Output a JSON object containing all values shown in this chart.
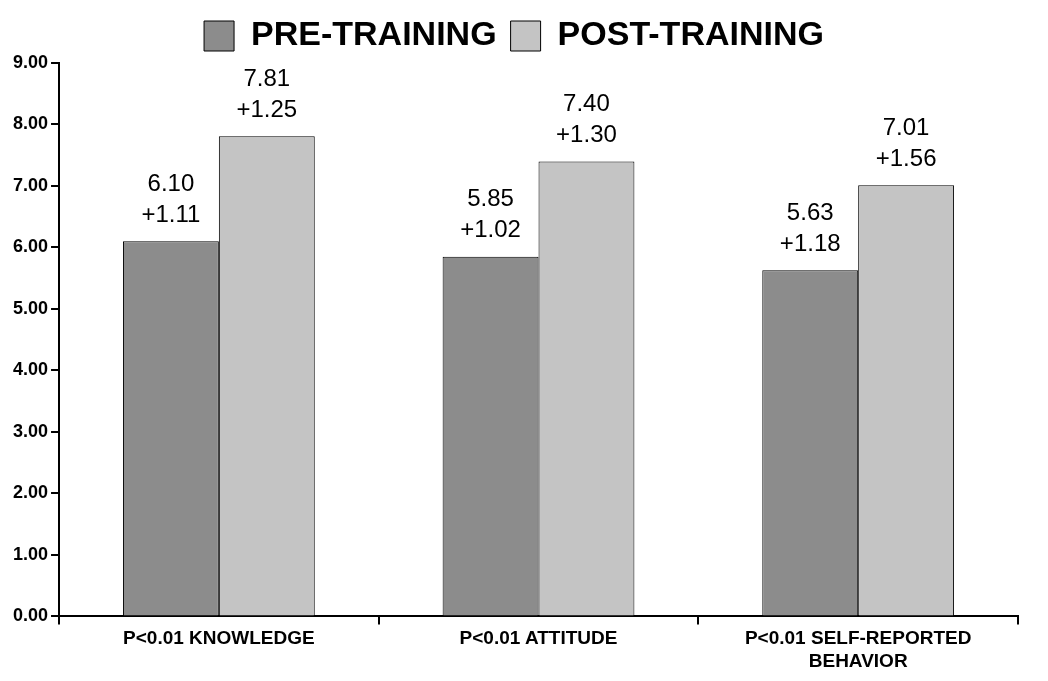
{
  "chart_data": {
    "type": "bar",
    "categories": [
      "P<0.01 KNOWLEDGE",
      "P<0.01 ATTITUDE",
      "P<0.01 SELF-REPORTED BEHAVIOR"
    ],
    "series": [
      {
        "name": "PRE-TRAINING",
        "color": "#8c8c8c",
        "values": [
          6.1,
          5.85,
          5.63
        ],
        "value_labels": [
          "6.10\n+1.11",
          "5.85\n+1.02",
          "5.63\n+1.18"
        ]
      },
      {
        "name": "POST-TRAINING",
        "color": "#c4c4c4",
        "values": [
          7.81,
          7.4,
          7.01
        ],
        "value_labels": [
          "7.81\n+1.25",
          "7.40\n+1.30",
          "7.01\n+1.56"
        ]
      }
    ],
    "ylim": [
      0,
      9
    ],
    "yticks": [
      {
        "value": 0,
        "label": "0.00"
      },
      {
        "value": 1,
        "label": "1.00"
      },
      {
        "value": 2,
        "label": "2.00"
      },
      {
        "value": 3,
        "label": "3.00"
      },
      {
        "value": 4,
        "label": "4.00"
      },
      {
        "value": 5,
        "label": "5.00"
      },
      {
        "value": 6,
        "label": "6.00"
      },
      {
        "value": 7,
        "label": "7.00"
      },
      {
        "value": 8,
        "label": "8.00"
      },
      {
        "value": 9,
        "label": "9.00"
      }
    ],
    "grid": false,
    "legend": "top"
  }
}
